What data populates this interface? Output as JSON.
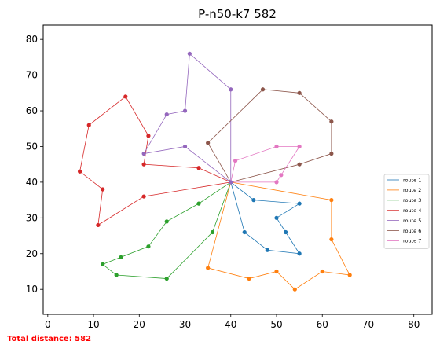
{
  "chart_data": {
    "type": "line",
    "title": "P-n50-k7 582",
    "xlim": [
      -1,
      84
    ],
    "ylim": [
      3,
      84
    ],
    "xticks": [
      0,
      10,
      20,
      30,
      40,
      50,
      60,
      70,
      80
    ],
    "yticks": [
      10,
      20,
      30,
      40,
      50,
      60,
      70,
      80
    ],
    "grid": false,
    "legend_placement": "center-right",
    "depot": [
      40,
      40
    ],
    "series": [
      {
        "name": "route 1",
        "color": "#1f77b4",
        "points": [
          [
            40,
            40
          ],
          [
            45,
            35
          ],
          [
            55,
            34
          ],
          [
            50,
            30
          ],
          [
            52,
            26
          ],
          [
            55,
            20
          ],
          [
            48,
            21
          ],
          [
            43,
            26
          ],
          [
            40,
            40
          ]
        ]
      },
      {
        "name": "route 2",
        "color": "#ff7f0e",
        "points": [
          [
            40,
            40
          ],
          [
            62,
            35
          ],
          [
            62,
            24
          ],
          [
            66,
            14
          ],
          [
            60,
            15
          ],
          [
            54,
            10
          ],
          [
            50,
            15
          ],
          [
            44,
            13
          ],
          [
            35,
            16
          ],
          [
            40,
            40
          ]
        ]
      },
      {
        "name": "route 3",
        "color": "#2ca02c",
        "points": [
          [
            40,
            40
          ],
          [
            33,
            34
          ],
          [
            26,
            29
          ],
          [
            22,
            22
          ],
          [
            16,
            19
          ],
          [
            12,
            17
          ],
          [
            15,
            14
          ],
          [
            26,
            13
          ],
          [
            36,
            26
          ],
          [
            40,
            40
          ]
        ]
      },
      {
        "name": "route 4",
        "color": "#d62728",
        "points": [
          [
            40,
            40
          ],
          [
            21,
            36
          ],
          [
            11,
            28
          ],
          [
            12,
            38
          ],
          [
            7,
            43
          ],
          [
            9,
            56
          ],
          [
            17,
            64
          ],
          [
            22,
            53
          ],
          [
            21,
            45
          ],
          [
            33,
            44
          ],
          [
            40,
            40
          ]
        ]
      },
      {
        "name": "route 5",
        "color": "#9467bd",
        "points": [
          [
            40,
            40
          ],
          [
            30,
            50
          ],
          [
            21,
            48
          ],
          [
            26,
            59
          ],
          [
            30,
            60
          ],
          [
            31,
            76
          ],
          [
            40,
            66
          ],
          [
            40,
            40
          ]
        ]
      },
      {
        "name": "route 6",
        "color": "#8c564b",
        "points": [
          [
            40,
            40
          ],
          [
            35,
            51
          ],
          [
            47,
            66
          ],
          [
            55,
            65
          ],
          [
            62,
            57
          ],
          [
            62,
            48
          ],
          [
            55,
            45
          ],
          [
            40,
            40
          ]
        ]
      },
      {
        "name": "route 7",
        "color": "#e377c2",
        "points": [
          [
            40,
            40
          ],
          [
            41,
            46
          ],
          [
            50,
            50
          ],
          [
            55,
            50
          ],
          [
            51,
            42
          ],
          [
            50,
            40
          ],
          [
            40,
            40
          ]
        ]
      }
    ]
  },
  "footer": {
    "total_distance": "Total distance: 582"
  }
}
